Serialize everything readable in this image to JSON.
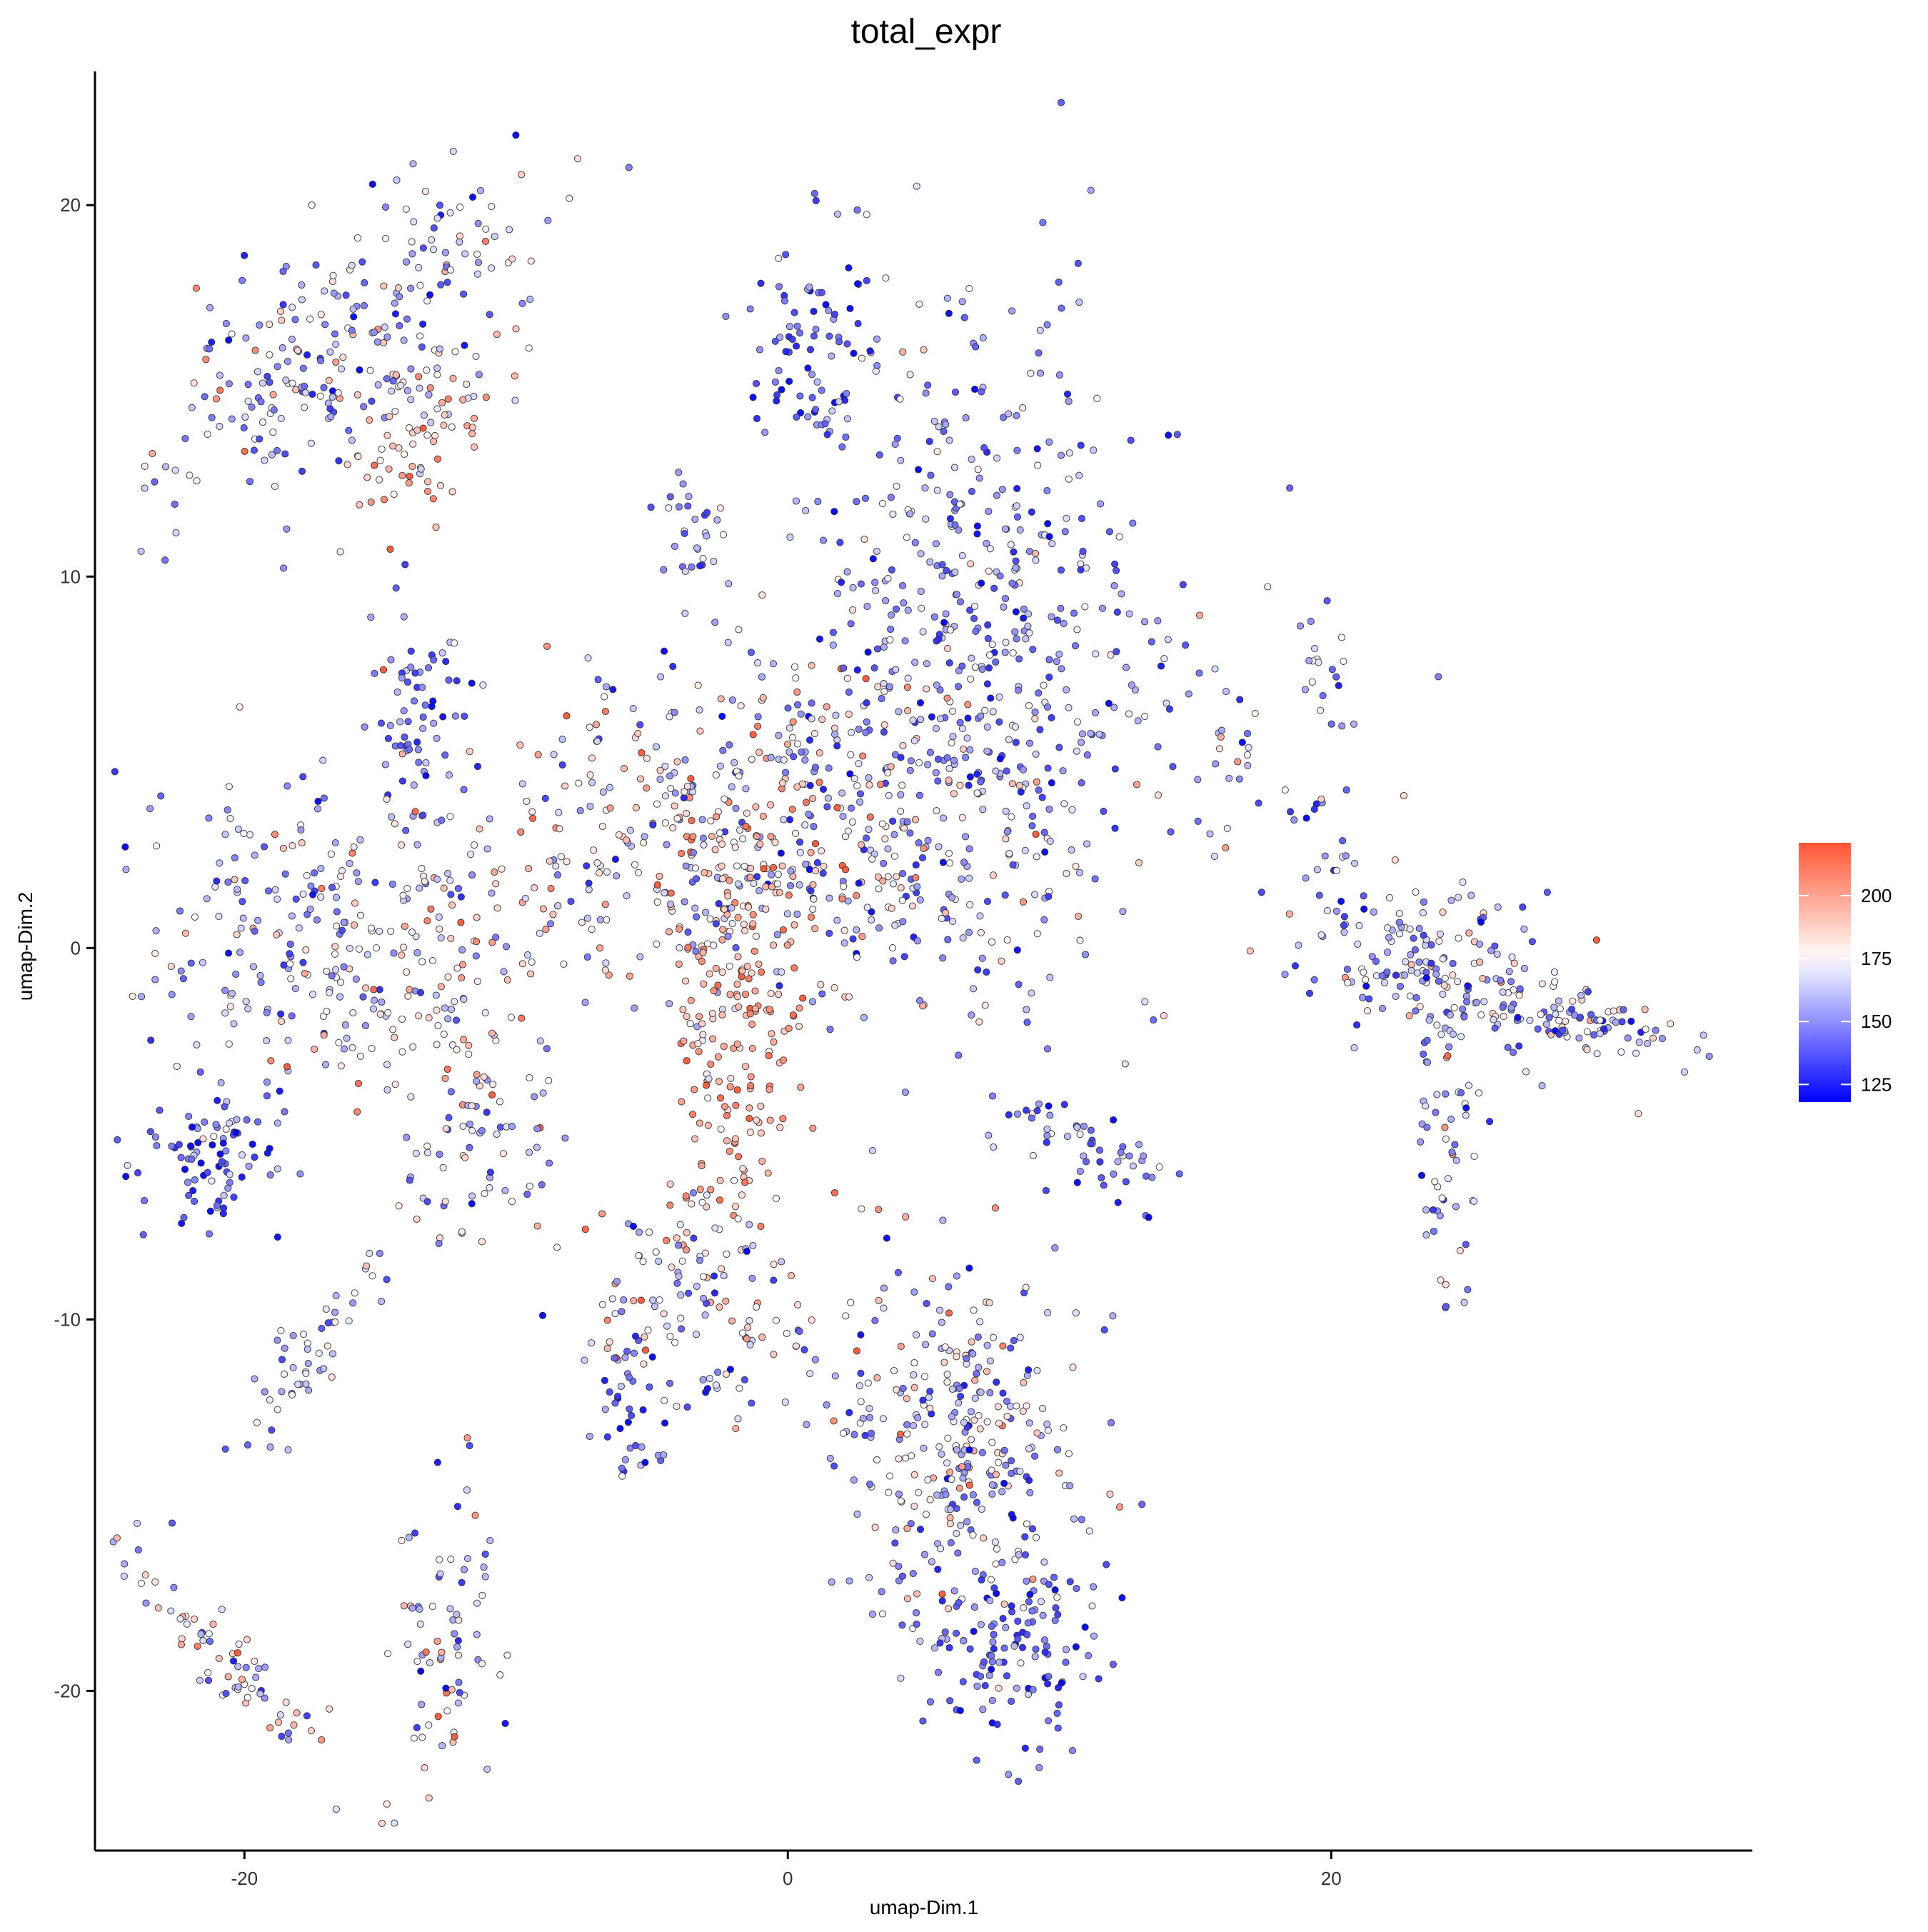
{
  "chart_data": {
    "type": "scatter",
    "title": "total_expr",
    "xlabel": "umap-Dim.1",
    "ylabel": "umap-Dim.2",
    "xlim": [
      -25.5,
      35.5
    ],
    "ylim": [
      -24.3,
      23.6
    ],
    "x_ticks": [
      -20,
      0,
      20
    ],
    "y_ticks": [
      -20,
      -10,
      0,
      10,
      20
    ],
    "grid": false,
    "legend": {
      "placement": "right",
      "type": "colorbar",
      "title": "",
      "range": [
        118,
        221
      ],
      "ticks": [
        125,
        150,
        175,
        200
      ],
      "colors": {
        "low": "#0000FF",
        "mid": "#FFFFFF",
        "high": "#FF5533"
      },
      "midpoint": 175
    },
    "point_style": {
      "stroke": "#333333",
      "opacity": 0.95
    },
    "clusters": [
      {
        "label": "",
        "center": [
          -15.8,
          16.5
        ],
        "spread": [
          1.4,
          4.2
        ],
        "angle": -58,
        "n": 260,
        "mean_value": 158,
        "value_sd": 22
      },
      {
        "label": "",
        "center": [
          -13.2,
          13.8
        ],
        "spread": [
          0.9,
          1.8
        ],
        "angle": -55,
        "n": 70,
        "mean_value": 190,
        "value_sd": 18
      },
      {
        "label": "",
        "center": [
          -13.6,
          6.2
        ],
        "spread": [
          0.9,
          1.5
        ],
        "angle": 0,
        "n": 70,
        "mean_value": 140,
        "value_sd": 15
      },
      {
        "label": "",
        "center": [
          -18.0,
          0.2
        ],
        "spread": [
          3.2,
          2.2
        ],
        "angle": 0,
        "n": 220,
        "mean_value": 160,
        "value_sd": 20
      },
      {
        "label": "",
        "center": [
          -13.0,
          -1.5
        ],
        "spread": [
          2.2,
          1.8
        ],
        "angle": 0,
        "n": 90,
        "mean_value": 180,
        "value_sd": 20
      },
      {
        "label": "",
        "center": [
          -21.2,
          -5.6
        ],
        "spread": [
          1.3,
          0.9
        ],
        "angle": 0,
        "n": 90,
        "mean_value": 142,
        "value_sd": 16
      },
      {
        "label": "",
        "center": [
          -11.6,
          -5.6
        ],
        "spread": [
          1.1,
          1.9
        ],
        "angle": -60,
        "n": 60,
        "mean_value": 165,
        "value_sd": 20
      },
      {
        "label": "",
        "center": [
          -17.8,
          -11.0
        ],
        "spread": [
          0.5,
          2.2
        ],
        "angle": -45,
        "n": 55,
        "mean_value": 155,
        "value_sd": 16
      },
      {
        "label": "",
        "center": [
          -20.0,
          -19.6
        ],
        "spread": [
          0.5,
          3.2
        ],
        "angle": 55,
        "n": 75,
        "mean_value": 175,
        "value_sd": 24
      },
      {
        "label": "",
        "center": [
          -12.6,
          -18.2
        ],
        "spread": [
          0.8,
          2.0
        ],
        "angle": 0,
        "n": 75,
        "mean_value": 168,
        "value_sd": 26
      },
      {
        "label": "",
        "center": [
          0.7,
          16.2
        ],
        "spread": [
          1.3,
          1.5
        ],
        "angle": 0,
        "n": 80,
        "mean_value": 140,
        "value_sd": 16
      },
      {
        "label": "",
        "center": [
          7.0,
          8.5
        ],
        "spread": [
          3.0,
          4.8
        ],
        "angle": 0,
        "n": 460,
        "mean_value": 150,
        "value_sd": 18
      },
      {
        "label": "",
        "center": [
          2.0,
          4.0
        ],
        "spread": [
          5.8,
          2.6
        ],
        "angle": 0,
        "n": 420,
        "mean_value": 165,
        "value_sd": 24
      },
      {
        "label": "",
        "center": [
          -4.0,
          2.0
        ],
        "spread": [
          4.0,
          2.2
        ],
        "angle": 0,
        "n": 240,
        "mean_value": 178,
        "value_sd": 22
      },
      {
        "label": "",
        "center": [
          -3.5,
          11.3
        ],
        "spread": [
          0.6,
          0.7
        ],
        "angle": 0,
        "n": 28,
        "mean_value": 150,
        "value_sd": 16
      },
      {
        "label": "",
        "center": [
          -1.8,
          -2.5
        ],
        "spread": [
          1.1,
          3.3
        ],
        "angle": -10,
        "n": 180,
        "mean_value": 198,
        "value_sd": 12
      },
      {
        "label": "",
        "center": [
          -3.2,
          -9.8
        ],
        "spread": [
          2.0,
          1.6
        ],
        "angle": 0,
        "n": 130,
        "mean_value": 165,
        "value_sd": 24
      },
      {
        "label": "",
        "center": [
          -5.8,
          -12.6
        ],
        "spread": [
          0.6,
          1.2
        ],
        "angle": 0,
        "n": 35,
        "mean_value": 145,
        "value_sd": 16
      },
      {
        "label": "",
        "center": [
          6.2,
          -13.3
        ],
        "spread": [
          2.3,
          2.5
        ],
        "angle": 0,
        "n": 320,
        "mean_value": 162,
        "value_sd": 22
      },
      {
        "label": "",
        "center": [
          8.3,
          -18.8
        ],
        "spread": [
          1.6,
          1.3
        ],
        "angle": 0,
        "n": 130,
        "mean_value": 138,
        "value_sd": 14
      },
      {
        "label": "",
        "center": [
          10.8,
          -5.2
        ],
        "spread": [
          0.6,
          1.7
        ],
        "angle": 70,
        "n": 55,
        "mean_value": 148,
        "value_sd": 18
      },
      {
        "label": "",
        "center": [
          17.5,
          4.5
        ],
        "spread": [
          0.7,
          3.2
        ],
        "angle": 55,
        "n": 45,
        "mean_value": 160,
        "value_sd": 22
      },
      {
        "label": "",
        "center": [
          19.6,
          7.4
        ],
        "spread": [
          0.6,
          1.3
        ],
        "angle": 30,
        "n": 22,
        "mean_value": 160,
        "value_sd": 18
      },
      {
        "label": "",
        "center": [
          23.5,
          -0.6
        ],
        "spread": [
          2.6,
          1.2
        ],
        "angle": -8,
        "n": 170,
        "mean_value": 160,
        "value_sd": 20
      },
      {
        "label": "",
        "center": [
          29.0,
          -1.9
        ],
        "spread": [
          2.8,
          0.5
        ],
        "angle": -4,
        "n": 95,
        "mean_value": 158,
        "value_sd": 18
      },
      {
        "label": "",
        "center": [
          24.1,
          -5.5
        ],
        "spread": [
          0.5,
          2.3
        ],
        "angle": 0,
        "n": 55,
        "mean_value": 160,
        "value_sd": 20
      }
    ]
  }
}
